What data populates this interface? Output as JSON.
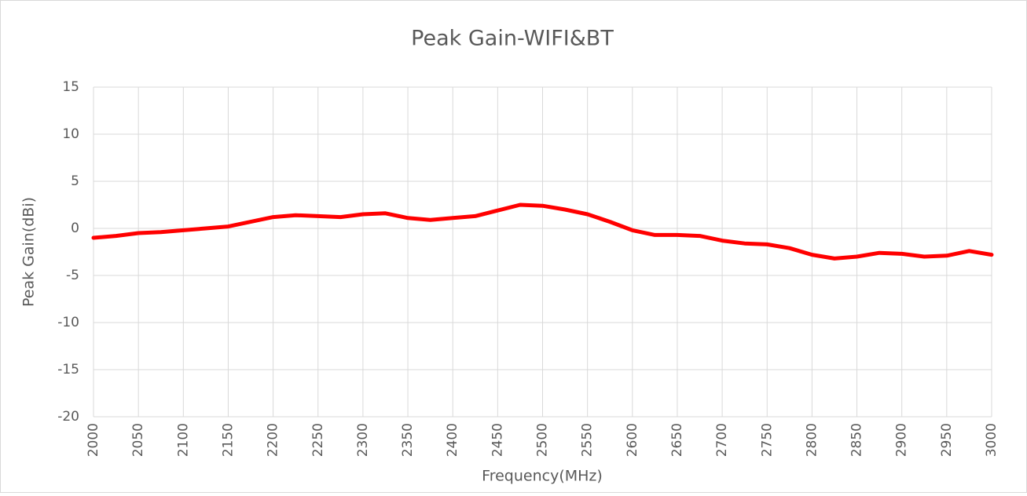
{
  "chart_data": {
    "type": "line",
    "title": "Peak Gain-WIFI&BT",
    "x_label": "Frequency(MHz)",
    "y_label": "Peak Gain(dBi)",
    "x": [
      2000,
      2025,
      2050,
      2075,
      2100,
      2125,
      2150,
      2175,
      2200,
      2225,
      2250,
      2275,
      2300,
      2325,
      2350,
      2375,
      2400,
      2425,
      2450,
      2475,
      2500,
      2525,
      2550,
      2575,
      2600,
      2625,
      2650,
      2675,
      2700,
      2725,
      2750,
      2775,
      2800,
      2825,
      2850,
      2875,
      2900,
      2925,
      2950,
      2975,
      3000
    ],
    "series": [
      {
        "name": "Peak Gain",
        "color": "#ff0000",
        "values": [
          -1.0,
          -0.8,
          -0.5,
          -0.4,
          -0.2,
          0.0,
          0.2,
          0.7,
          1.2,
          1.4,
          1.3,
          1.2,
          1.5,
          1.6,
          1.1,
          0.9,
          1.1,
          1.3,
          1.9,
          2.5,
          2.4,
          2.0,
          1.5,
          0.7,
          -0.2,
          -0.7,
          -0.7,
          -0.8,
          -1.3,
          -1.6,
          -1.7,
          -2.1,
          -2.8,
          -3.2,
          -3.0,
          -2.6,
          -2.7,
          -3.0,
          -2.9,
          -2.4,
          -2.8
        ]
      }
    ],
    "xlim": [
      2000,
      3000
    ],
    "xticks": [
      2000,
      2050,
      2100,
      2150,
      2200,
      2250,
      2300,
      2350,
      2400,
      2450,
      2500,
      2550,
      2600,
      2650,
      2700,
      2750,
      2800,
      2850,
      2900,
      2950,
      3000
    ],
    "ylim": [
      -20,
      15
    ],
    "yticks": [
      -20,
      -15,
      -10,
      -5,
      0,
      5,
      10,
      15
    ],
    "grid": true
  }
}
